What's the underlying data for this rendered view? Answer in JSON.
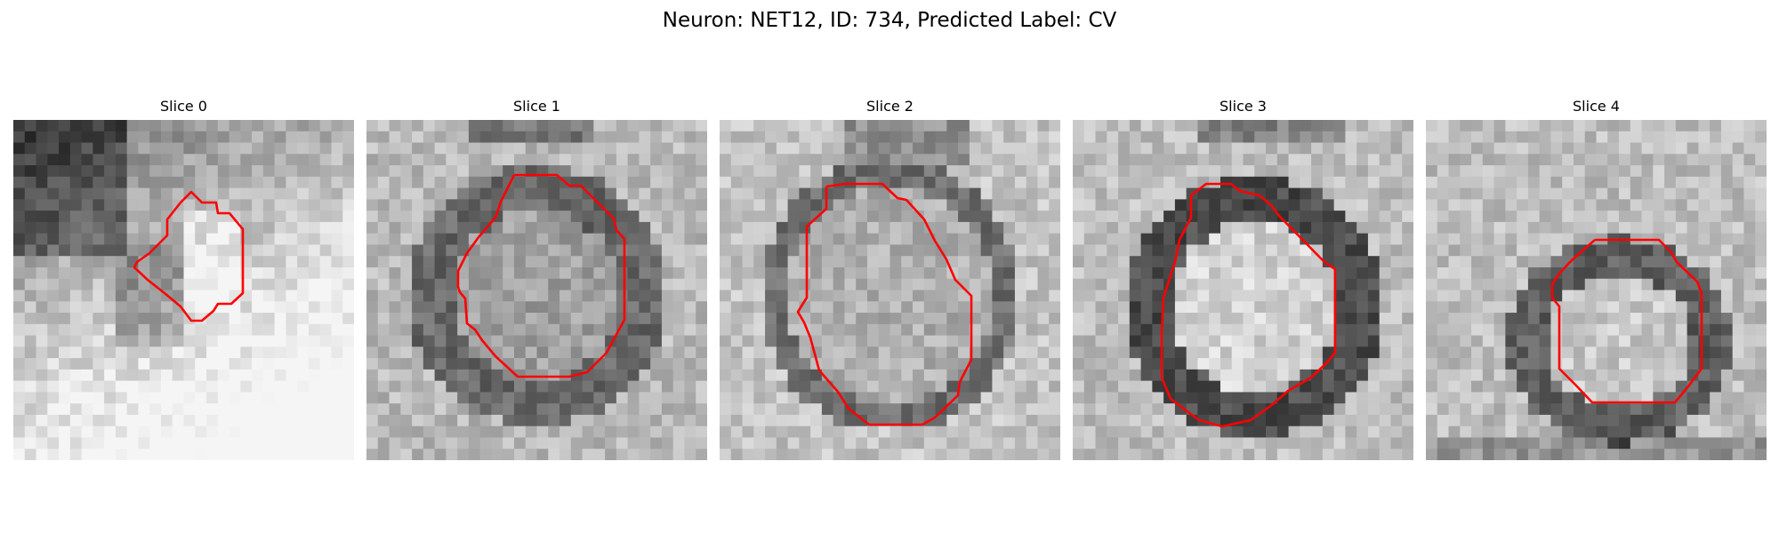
{
  "figure": {
    "title": "Neuron: NET12, ID: 734, Predicted Label: CV"
  },
  "panels": [
    {
      "label": "Slice 0",
      "texture": "dark-upper-left-bright-lower"
    },
    {
      "label": "Slice 1",
      "texture": "ring-with-grey-center"
    },
    {
      "label": "Slice 2",
      "texture": "ring-with-grey-center"
    },
    {
      "label": "Slice 3",
      "texture": "dark-ring-bright-center"
    },
    {
      "label": "Slice 4",
      "texture": "dark-ring-bright-center"
    }
  ],
  "colors": {
    "contour": "#ff0000",
    "background": "#ffffff"
  }
}
